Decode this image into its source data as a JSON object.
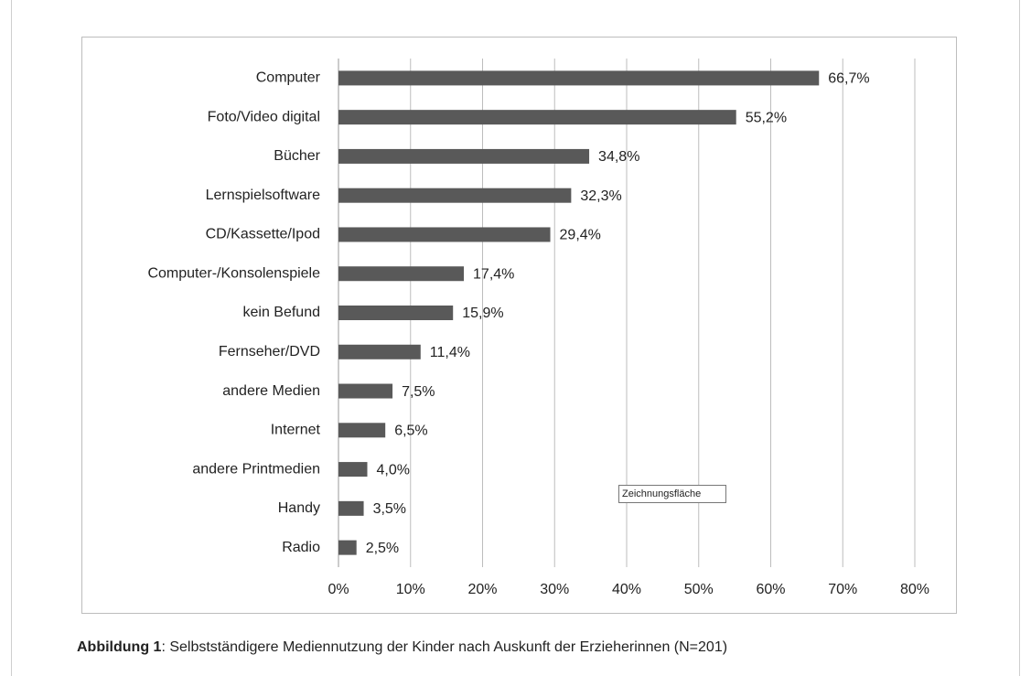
{
  "chart_data": {
    "type": "bar",
    "orientation": "horizontal",
    "categories": [
      "Computer",
      "Foto/Video digital",
      "Bücher",
      "Lernspielsoftware",
      "CD/Kassette/Ipod",
      "Computer-/Konsolenspiele",
      "kein Befund",
      "Fernseher/DVD",
      "andere Medien",
      "Internet",
      "andere Printmedien",
      "Handy",
      "Radio"
    ],
    "values": [
      66.7,
      55.2,
      34.8,
      32.3,
      29.4,
      17.4,
      15.9,
      11.4,
      7.5,
      6.5,
      4.0,
      3.5,
      2.5
    ],
    "value_labels": [
      "66,7%",
      "55,2%",
      "34,8%",
      "32,3%",
      "29,4%",
      "17,4%",
      "15,9%",
      "11,4%",
      "7,5%",
      "6,5%",
      "4,0%",
      "3,5%",
      "2,5%"
    ],
    "color": "#595959",
    "xlim": [
      0,
      80
    ],
    "xticks": [
      {
        "value": 0,
        "label": "0%"
      },
      {
        "value": 10,
        "label": "10%"
      },
      {
        "value": 20,
        "label": "20%"
      },
      {
        "value": 30,
        "label": "30%"
      },
      {
        "value": 40,
        "label": "40%"
      },
      {
        "value": 50,
        "label": "50%"
      },
      {
        "value": 60,
        "label": "60%"
      },
      {
        "value": 70,
        "label": "70%"
      },
      {
        "value": 80,
        "label": "80%"
      }
    ],
    "grid": true,
    "tooltip": "Zeichnungsfläche",
    "caption_label": "Abbildung 1",
    "caption": ": Selbstständigere Mediennutzung der Kinder nach Auskunft der Erzieherinnen (N=201)"
  }
}
